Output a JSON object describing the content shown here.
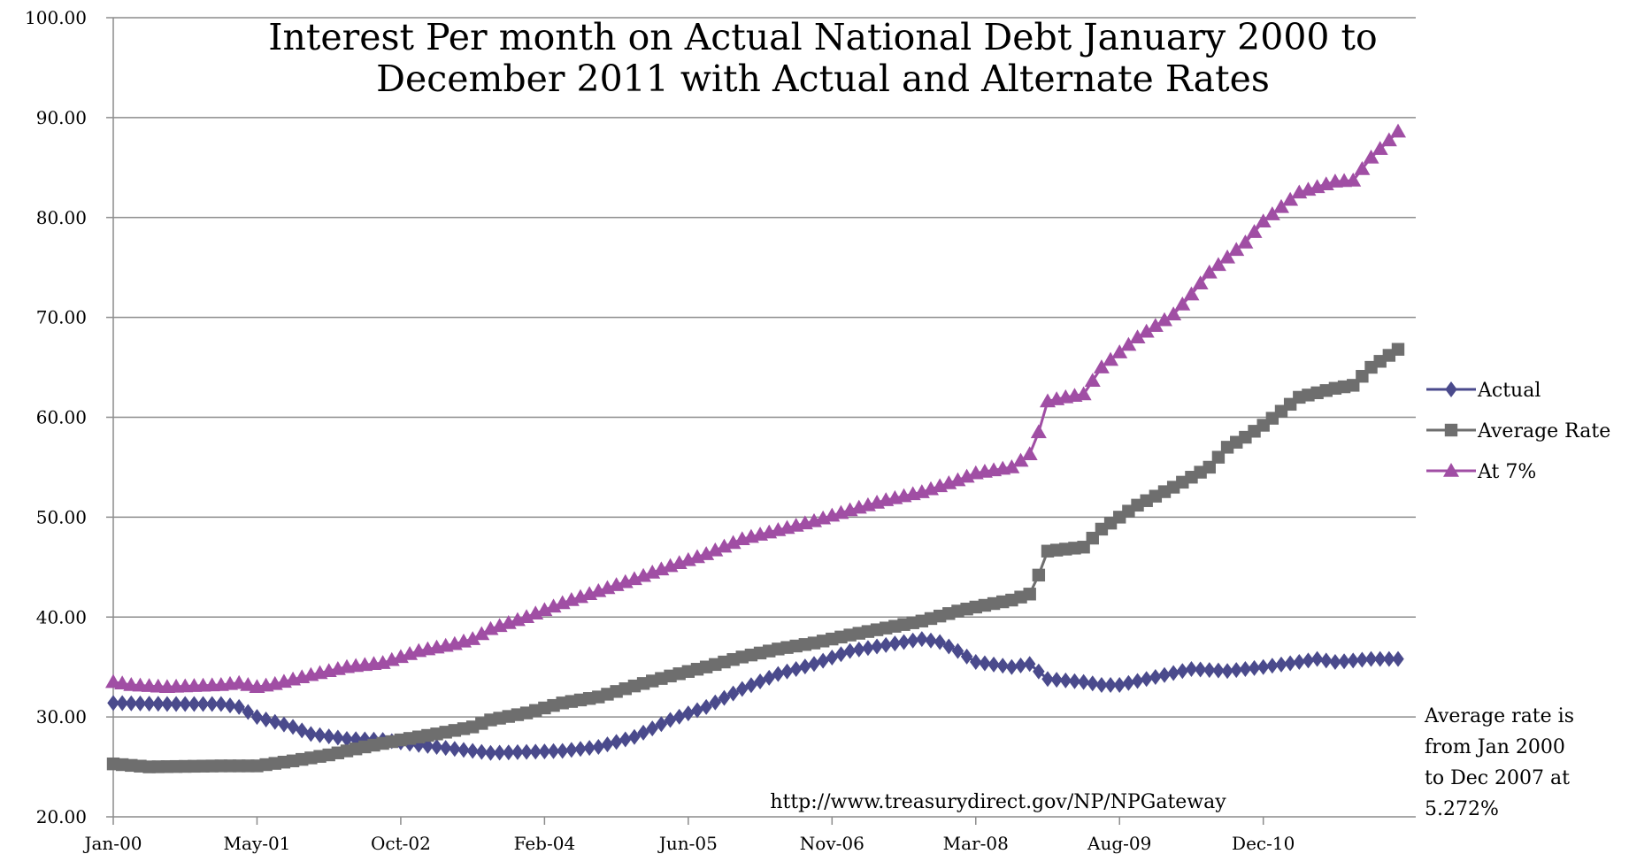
{
  "chart_data": {
    "type": "line",
    "title_lines": [
      "Interest Per month on Actual National Debt January 2000 to",
      "December 2011 with Actual and Alternate Rates"
    ],
    "xlabel": "",
    "ylabel": "",
    "ylim": [
      20,
      100
    ],
    "y_ticks": [
      "20.00",
      "30.00",
      "40.00",
      "50.00",
      "60.00",
      "70.00",
      "80.00",
      "90.00",
      "100.00"
    ],
    "x_tick_labels": [
      "Jan-00",
      "May-01",
      "Oct-02",
      "Feb-04",
      "Jun-05",
      "Nov-06",
      "Mar-08",
      "Aug-09",
      "Dec-10"
    ],
    "x_tick_positions": [
      0,
      16,
      32,
      48,
      64,
      80,
      96,
      112,
      128
    ],
    "grid": true,
    "legend_position": "right",
    "source_text": "http://www.treasurydirect.gov/NP/NPGateway",
    "note_lines": [
      "Average rate is",
      "from Jan 2000",
      "to Dec 2007 at",
      "5.272%"
    ],
    "series": [
      {
        "name": "Actual",
        "color": "#4a4a8c",
        "marker": "diamond",
        "anchors": [
          [
            0,
            31.4
          ],
          [
            6,
            31.3
          ],
          [
            12,
            31.3
          ],
          [
            14,
            31.0
          ],
          [
            16,
            30.0
          ],
          [
            20,
            29.0
          ],
          [
            22,
            28.3
          ],
          [
            26,
            27.8
          ],
          [
            30,
            27.7
          ],
          [
            34,
            27.2
          ],
          [
            38,
            26.8
          ],
          [
            40,
            26.6
          ],
          [
            42,
            26.4
          ],
          [
            46,
            26.5
          ],
          [
            50,
            26.6
          ],
          [
            54,
            27.0
          ],
          [
            58,
            28.0
          ],
          [
            62,
            29.7
          ],
          [
            66,
            31.0
          ],
          [
            70,
            32.8
          ],
          [
            74,
            34.3
          ],
          [
            78,
            35.3
          ],
          [
            82,
            36.6
          ],
          [
            86,
            37.2
          ],
          [
            90,
            37.8
          ],
          [
            92,
            37.5
          ],
          [
            94,
            36.6
          ],
          [
            96,
            35.5
          ],
          [
            100,
            35.0
          ],
          [
            102,
            35.3
          ],
          [
            104,
            33.8
          ],
          [
            108,
            33.5
          ],
          [
            110,
            33.2
          ],
          [
            112,
            33.2
          ],
          [
            116,
            34.0
          ],
          [
            120,
            34.8
          ],
          [
            124,
            34.6
          ],
          [
            128,
            35.0
          ],
          [
            132,
            35.5
          ],
          [
            134,
            35.8
          ],
          [
            136,
            35.5
          ],
          [
            140,
            35.8
          ],
          [
            143,
            35.8
          ]
        ]
      },
      {
        "name": "Average Rate",
        "color": "#6e6e6e",
        "marker": "square",
        "anchors": [
          [
            0,
            25.3
          ],
          [
            4,
            25.0
          ],
          [
            12,
            25.1
          ],
          [
            16,
            25.1
          ],
          [
            20,
            25.6
          ],
          [
            24,
            26.2
          ],
          [
            28,
            27.0
          ],
          [
            32,
            27.7
          ],
          [
            36,
            28.3
          ],
          [
            40,
            29.0
          ],
          [
            42,
            29.7
          ],
          [
            46,
            30.4
          ],
          [
            50,
            31.4
          ],
          [
            54,
            32.0
          ],
          [
            58,
            33.1
          ],
          [
            62,
            34.1
          ],
          [
            66,
            35.0
          ],
          [
            70,
            36.0
          ],
          [
            74,
            36.8
          ],
          [
            78,
            37.4
          ],
          [
            82,
            38.2
          ],
          [
            86,
            38.9
          ],
          [
            90,
            39.6
          ],
          [
            94,
            40.6
          ],
          [
            96,
            41.0
          ],
          [
            100,
            41.7
          ],
          [
            102,
            42.3
          ],
          [
            103,
            44.2
          ],
          [
            104,
            46.6
          ],
          [
            108,
            47.0
          ],
          [
            110,
            48.8
          ],
          [
            114,
            51.2
          ],
          [
            118,
            53.0
          ],
          [
            122,
            55.0
          ],
          [
            124,
            57.0
          ],
          [
            126,
            58.0
          ],
          [
            128,
            59.2
          ],
          [
            132,
            62.0
          ],
          [
            136,
            62.9
          ],
          [
            138,
            63.2
          ],
          [
            140,
            65.0
          ],
          [
            143,
            66.8
          ]
        ]
      },
      {
        "name": "At 7%",
        "color": "#a04ea4",
        "marker": "triangle",
        "anchors": [
          [
            0,
            33.5
          ],
          [
            2,
            33.2
          ],
          [
            6,
            33.0
          ],
          [
            12,
            33.2
          ],
          [
            14,
            33.4
          ],
          [
            16,
            33.0
          ],
          [
            18,
            33.3
          ],
          [
            22,
            34.2
          ],
          [
            26,
            35.0
          ],
          [
            30,
            35.4
          ],
          [
            34,
            36.6
          ],
          [
            38,
            37.3
          ],
          [
            40,
            37.8
          ],
          [
            42,
            38.8
          ],
          [
            46,
            40.0
          ],
          [
            50,
            41.4
          ],
          [
            54,
            42.6
          ],
          [
            58,
            43.8
          ],
          [
            62,
            45.1
          ],
          [
            66,
            46.3
          ],
          [
            70,
            47.8
          ],
          [
            74,
            48.7
          ],
          [
            78,
            49.6
          ],
          [
            82,
            50.7
          ],
          [
            86,
            51.7
          ],
          [
            90,
            52.5
          ],
          [
            94,
            53.7
          ],
          [
            96,
            54.4
          ],
          [
            100,
            55.0
          ],
          [
            102,
            56.3
          ],
          [
            103,
            58.5
          ],
          [
            104,
            61.6
          ],
          [
            106,
            62.0
          ],
          [
            108,
            62.3
          ],
          [
            110,
            65.0
          ],
          [
            114,
            68.0
          ],
          [
            118,
            70.3
          ],
          [
            120,
            72.3
          ],
          [
            122,
            74.5
          ],
          [
            126,
            77.5
          ],
          [
            128,
            79.6
          ],
          [
            132,
            82.5
          ],
          [
            136,
            83.6
          ],
          [
            138,
            83.7
          ],
          [
            140,
            86.0
          ],
          [
            143,
            88.6
          ]
        ]
      }
    ]
  }
}
